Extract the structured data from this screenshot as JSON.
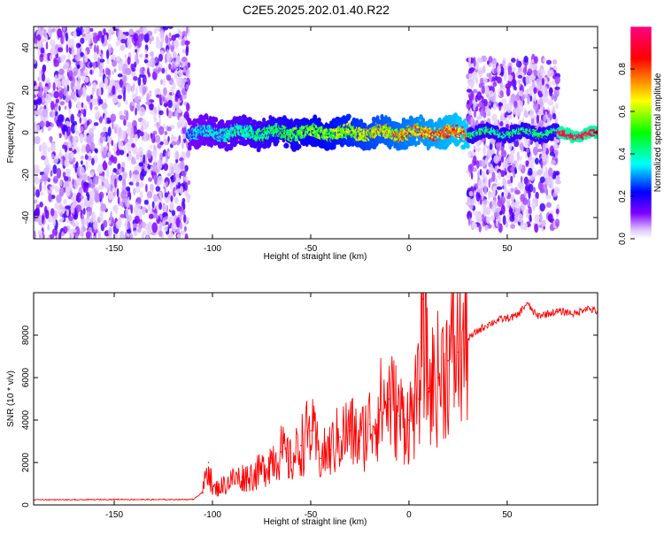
{
  "title": "C2E5.2025.202.01.40.R22",
  "chart_data": [
    {
      "type": "heatmap",
      "xlabel": "Height of straight line (km)",
      "ylabel": "Frequency (Hz)",
      "xlim": [
        -191,
        96
      ],
      "ylim": [
        -50,
        50
      ],
      "xticks": [
        -150,
        -100,
        -50,
        0,
        50
      ],
      "yticks": [
        -40,
        -20,
        0,
        20,
        40
      ],
      "colorbar": {
        "label": "Normalized spectral amplitude",
        "range": [
          0,
          1
        ],
        "ticks": [
          "0.0",
          "0.2",
          "0.4",
          "0.6",
          "0.8"
        ],
        "colormap": [
          "#ffffff",
          "#8000ff",
          "#0000ff",
          "#00ffff",
          "#00ff00",
          "#ffff00",
          "#ff8000",
          "#ff0000",
          "#ff00ff"
        ]
      },
      "regions": [
        {
          "x": [
            -191,
            -112
          ],
          "freq_spread": [
            -50,
            50
          ],
          "amplitude": 0.1
        },
        {
          "x": [
            -112,
            30
          ],
          "freq_center": 0,
          "freq_spread": [
            -8,
            8
          ],
          "amplitude": 0.5
        },
        {
          "x": [
            30,
            76
          ],
          "freq_spread": [
            -45,
            35
          ],
          "amplitude": 0.12
        },
        {
          "x": [
            30,
            76
          ],
          "freq_center": 0,
          "freq_spread": [
            -3,
            3
          ],
          "amplitude": 0.4
        },
        {
          "x": [
            76,
            96
          ],
          "freq_center": -1,
          "freq_spread": [
            -2,
            2
          ],
          "amplitude": 0.9
        }
      ]
    },
    {
      "type": "line",
      "xlabel": "Height of straight line (km)",
      "ylabel": "SNR (10 * v/v)",
      "xlim": [
        -191,
        96
      ],
      "ylim": [
        0,
        10000
      ],
      "xticks": [
        -150,
        -100,
        -50,
        0,
        50
      ],
      "yticks": [
        0,
        2000,
        4000,
        6000,
        8000
      ],
      "color": "#ff0000",
      "series": [
        {
          "x": [
            -191,
            -170,
            -150,
            -130,
            -110,
            -105,
            -102,
            -100,
            -95,
            -90,
            -85,
            -80,
            -75,
            -70,
            -65,
            -60,
            -55,
            -50,
            -45,
            -40,
            -35,
            -30,
            -25,
            -20,
            -15,
            -10,
            -5,
            0,
            5,
            7,
            10,
            15,
            20,
            25,
            30,
            35,
            40,
            45,
            50,
            55,
            60,
            65,
            70,
            75,
            80,
            85,
            90,
            96
          ],
          "y": [
            250,
            240,
            260,
            250,
            260,
            600,
            2000,
            700,
            900,
            1200,
            1300,
            1400,
            1600,
            2200,
            2500,
            2000,
            2800,
            3500,
            2200,
            2600,
            3200,
            3500,
            3000,
            3800,
            4500,
            5000,
            4200,
            4000,
            5000,
            9700,
            5500,
            6000,
            6800,
            7200,
            7800,
            8200,
            8500,
            8700,
            8800,
            8900,
            9500,
            8900,
            9000,
            9100,
            9100,
            9000,
            9300,
            9100
          ]
        }
      ]
    }
  ]
}
